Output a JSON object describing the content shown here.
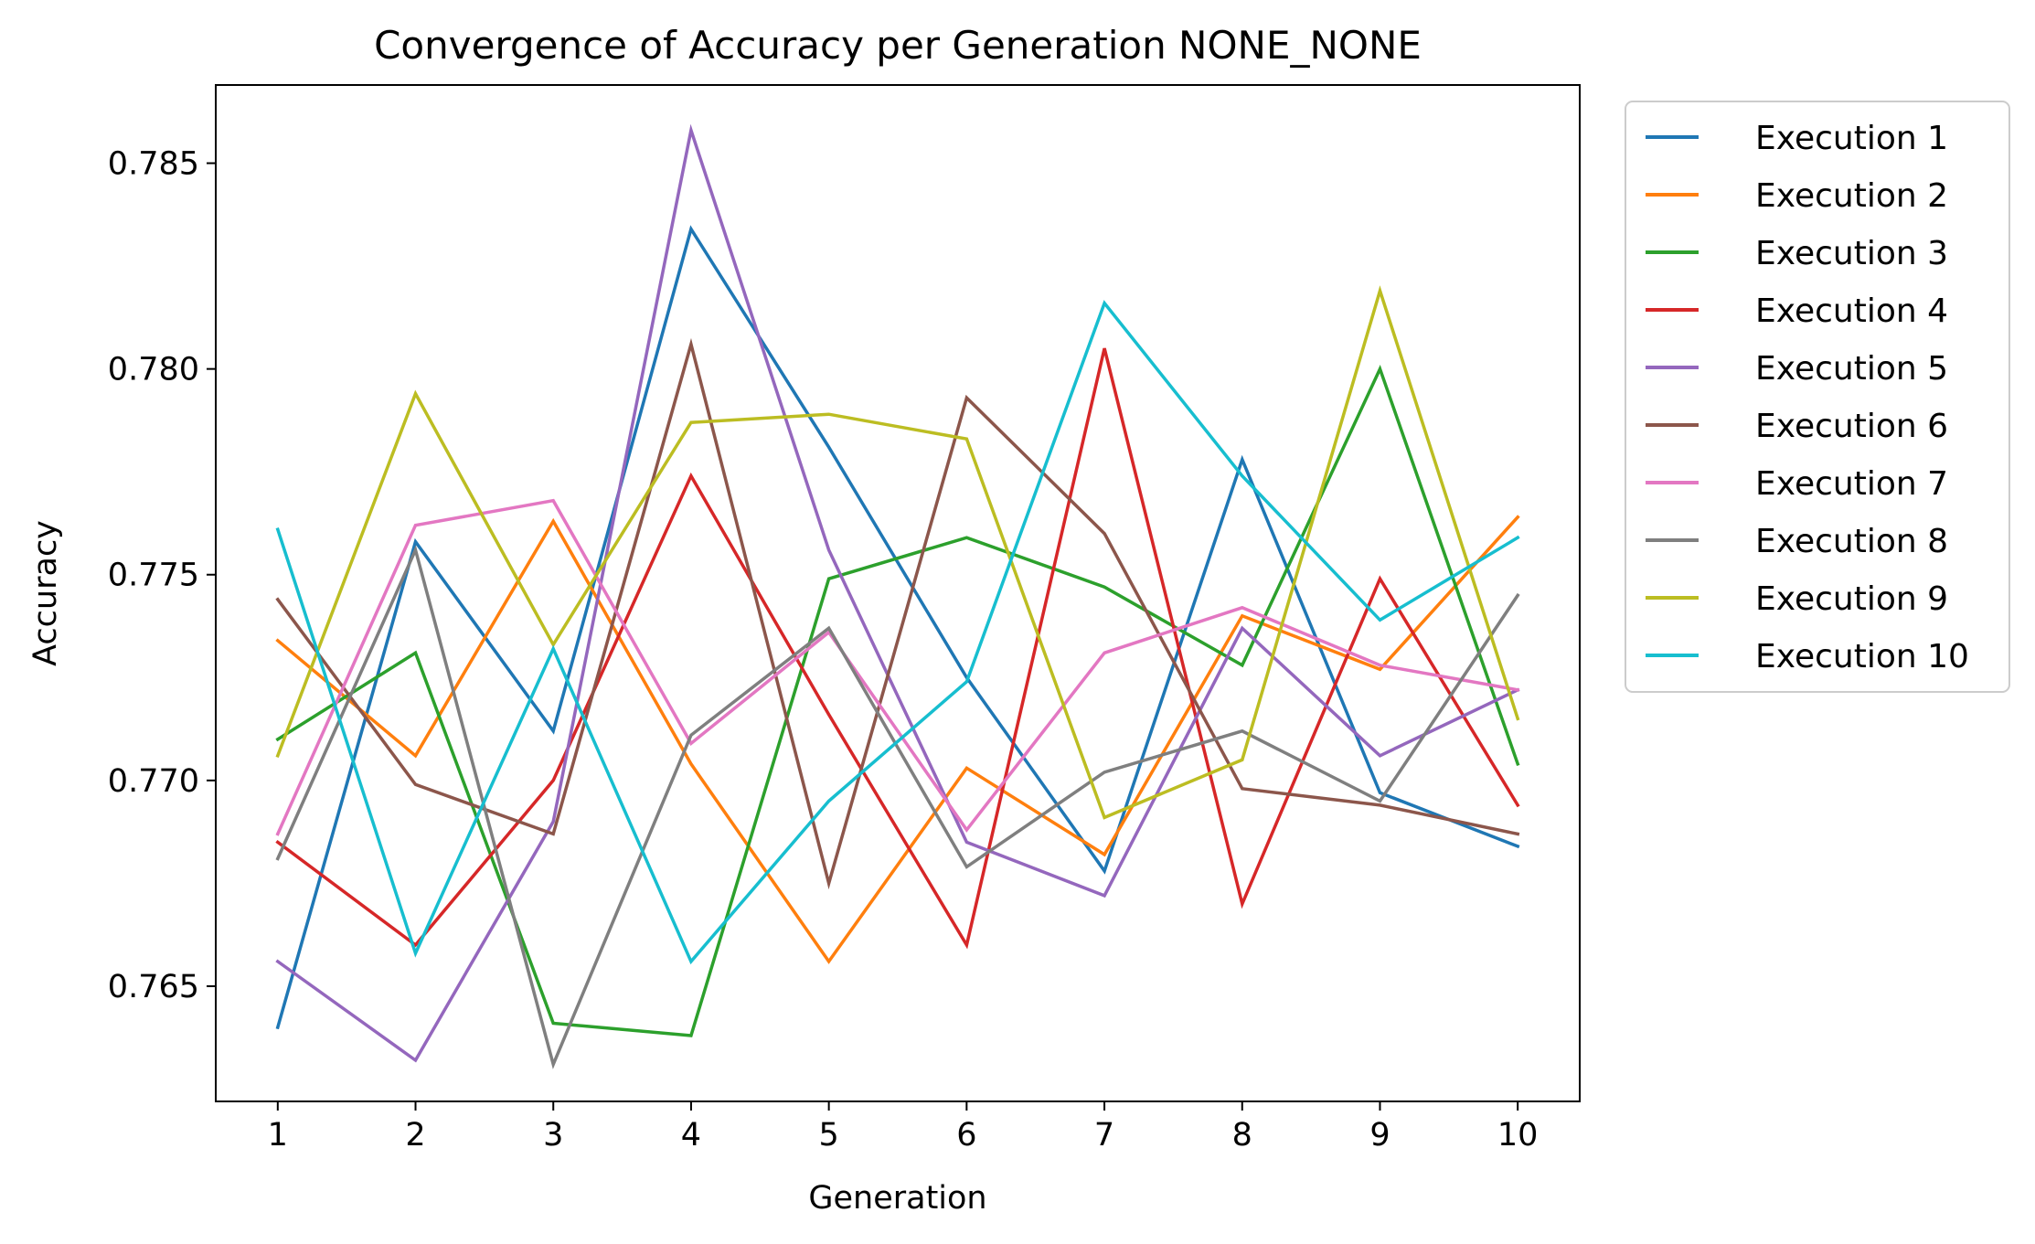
{
  "chart_data": {
    "type": "line",
    "title": "Convergence of Accuracy per Generation NONE_NONE",
    "xlabel": "Generation",
    "ylabel": "Accuracy",
    "x": [
      1,
      2,
      3,
      4,
      5,
      6,
      7,
      8,
      9,
      10
    ],
    "xlim": [
      0.55,
      10.45
    ],
    "ylim": [
      0.7622,
      0.7869
    ],
    "yticks": [
      0.765,
      0.77,
      0.775,
      0.78,
      0.785
    ],
    "ytick_labels": [
      "0.765",
      "0.770",
      "0.775",
      "0.780",
      "0.785"
    ],
    "grid": false,
    "legend_position": "outside-right-top",
    "series": [
      {
        "name": "Execution 1",
        "color": "#1f77b4",
        "values": [
          0.764,
          0.7758,
          0.7712,
          0.7834,
          0.7781,
          0.7725,
          0.7678,
          0.7778,
          0.7697,
          0.7684
        ]
      },
      {
        "name": "Execution 2",
        "color": "#ff7f0e",
        "values": [
          0.7734,
          0.7706,
          0.7763,
          0.7704,
          0.7656,
          0.7703,
          0.7682,
          0.774,
          0.7727,
          0.7764
        ]
      },
      {
        "name": "Execution 3",
        "color": "#2ca02c",
        "values": [
          0.771,
          0.7731,
          0.7641,
          0.7638,
          0.7749,
          0.7759,
          0.7747,
          0.7728,
          0.78,
          0.7704
        ]
      },
      {
        "name": "Execution 4",
        "color": "#d62728",
        "values": [
          0.7685,
          0.766,
          0.77,
          0.7774,
          0.7716,
          0.766,
          0.7805,
          0.767,
          0.7749,
          0.7694
        ]
      },
      {
        "name": "Execution 5",
        "color": "#9467bd",
        "values": [
          0.7656,
          0.7632,
          0.769,
          0.7858,
          0.7756,
          0.7685,
          0.7672,
          0.7737,
          0.7706,
          0.7722
        ]
      },
      {
        "name": "Execution 6",
        "color": "#8c564b",
        "values": [
          0.7744,
          0.7699,
          0.7687,
          0.7806,
          0.7675,
          0.7793,
          0.776,
          0.7698,
          0.7694,
          0.7687
        ]
      },
      {
        "name": "Execution 7",
        "color": "#e377c2",
        "values": [
          0.7687,
          0.7762,
          0.7768,
          0.7709,
          0.7736,
          0.7688,
          0.7731,
          0.7742,
          0.7728,
          0.7722
        ]
      },
      {
        "name": "Execution 8",
        "color": "#7f7f7f",
        "values": [
          0.7681,
          0.7756,
          0.7631,
          0.7711,
          0.7737,
          0.7679,
          0.7702,
          0.7712,
          0.7695,
          0.7745
        ]
      },
      {
        "name": "Execution 9",
        "color": "#bcbd22",
        "values": [
          0.7706,
          0.7794,
          0.7733,
          0.7787,
          0.7789,
          0.7783,
          0.7691,
          0.7705,
          0.7819,
          0.7715
        ]
      },
      {
        "name": "Execution 10",
        "color": "#17becf",
        "values": [
          0.7761,
          0.7658,
          0.7732,
          0.7656,
          0.7695,
          0.7724,
          0.7816,
          0.7774,
          0.7739,
          0.7759
        ]
      }
    ]
  }
}
